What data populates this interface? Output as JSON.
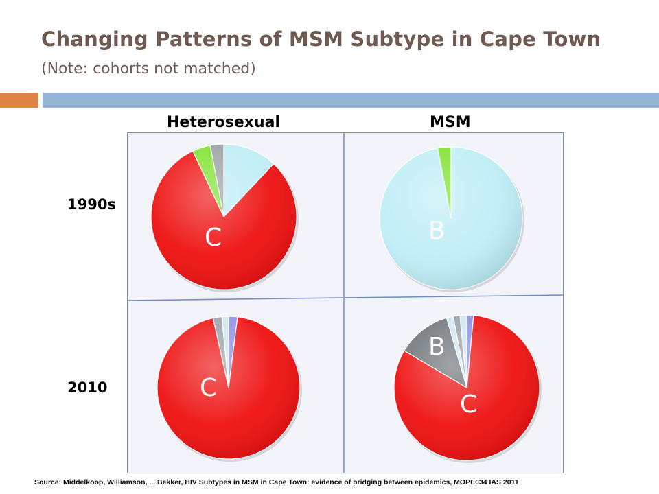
{
  "title": "Changing Patterns of MSM Subtype in Cape Town",
  "subtitle": "(Note:  cohorts not matched)",
  "columns": [
    "Heterosexual",
    "MSM"
  ],
  "rows": [
    "1990s",
    "2010"
  ],
  "source": "Source: Middelkoop, Williamson, .., Bekker, HIV Subtypes in MSM in Cape Town: evidence of bridging between epidemics, MOPE034 IAS 2011",
  "colors": {
    "C": "#ee1010",
    "B": "#bfeef6",
    "green": "#7ee12e",
    "gray": "#9aa0a6",
    "darkgray": "#6d7378",
    "blue": "#8f8fe6",
    "lightblue": "#cfe6f3",
    "orange_accent": "#dd8447",
    "blue_accent": "#94b5d6"
  },
  "chart_data": [
    {
      "type": "pie",
      "title": "Heterosexual 1990s",
      "slices": [
        {
          "label": "B",
          "value": 12,
          "color": "#bfeef6"
        },
        {
          "label": "C",
          "value": 81,
          "color": "#ee1010",
          "text": "C"
        },
        {
          "label": "",
          "value": 4,
          "color": "#7ee12e"
        },
        {
          "label": "",
          "value": 3,
          "color": "#9aa0a6"
        }
      ]
    },
    {
      "type": "pie",
      "title": "MSM 1990s",
      "slices": [
        {
          "label": "B",
          "value": 97,
          "color": "#bfeef6",
          "text": "B"
        },
        {
          "label": "",
          "value": 3,
          "color": "#7ee12e"
        }
      ]
    },
    {
      "type": "pie",
      "title": "Heterosexual 2010",
      "slices": [
        {
          "label": "",
          "value": 2,
          "color": "#8f8fe6"
        },
        {
          "label": "C",
          "value": 94.5,
          "color": "#ee1010",
          "text": "C"
        },
        {
          "label": "",
          "value": 2,
          "color": "#9aa0a6"
        },
        {
          "label": "",
          "value": 1.5,
          "color": "#cfe6f3"
        }
      ]
    },
    {
      "type": "pie",
      "title": "MSM 2010",
      "slices": [
        {
          "label": "",
          "value": 1.5,
          "color": "#8f8fe6"
        },
        {
          "label": "C",
          "value": 82,
          "color": "#ee1010",
          "text": "C"
        },
        {
          "label": "B",
          "value": 12,
          "color": "#6d7378",
          "text": "B"
        },
        {
          "label": "",
          "value": 1.5,
          "color": "#cfe6f3"
        },
        {
          "label": "",
          "value": 1.5,
          "color": "#9aa0a6"
        },
        {
          "label": "",
          "value": 1.5,
          "color": "#cfe6f3"
        }
      ]
    }
  ]
}
